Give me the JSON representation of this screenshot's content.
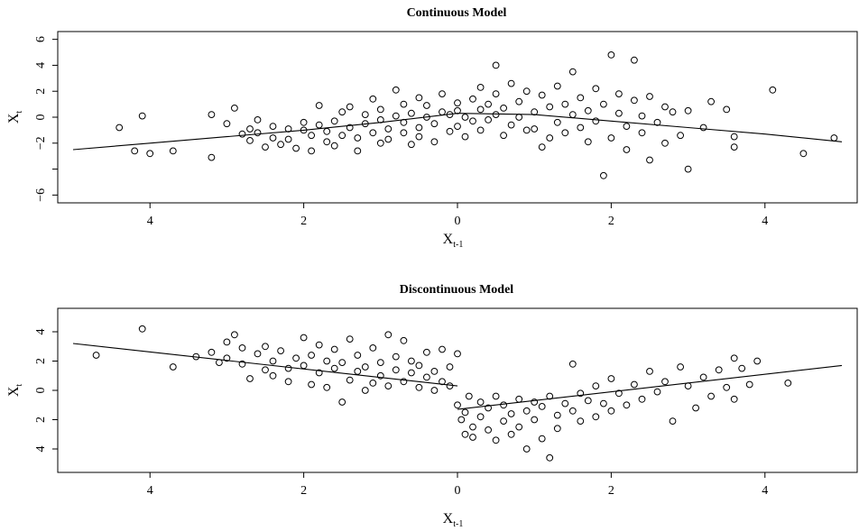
{
  "chart_data": [
    {
      "type": "scatter",
      "title": "Continuous Model",
      "xlabel": "X",
      "xlabel_sub": "t-1",
      "ylabel": "X",
      "ylabel_sub": "t",
      "xlim": [
        -5.2,
        5.2
      ],
      "ylim": [
        -6.6,
        6.6
      ],
      "x_ticks": [
        -4,
        -2,
        0,
        2,
        4
      ],
      "x_tick_labels": [
        "4",
        "2",
        "0",
        "2",
        "4"
      ],
      "y_ticks": [
        -6,
        -4,
        -2,
        0,
        2,
        4,
        6
      ],
      "y_tick_labels": [
        "−6",
        "",
        "−2",
        "0",
        "2",
        "4",
        "6"
      ],
      "grid": false,
      "fit_line": {
        "x": [
          -5,
          -4,
          -3,
          -2,
          -1,
          0,
          1,
          2,
          3,
          4,
          5
        ],
        "y": [
          -2.5,
          -2,
          -1.5,
          -1,
          -0.4,
          0.3,
          0.2,
          -0.3,
          -0.8,
          -1.3,
          -1.9
        ]
      },
      "series": [
        {
          "marker": "open-circle",
          "points": [
            [
              -4.4,
              -0.8
            ],
            [
              -4.1,
              0.1
            ],
            [
              -4.2,
              -2.6
            ],
            [
              -4.0,
              -2.8
            ],
            [
              -3.7,
              -2.6
            ],
            [
              -3.2,
              0.2
            ],
            [
              -3.2,
              -3.1
            ],
            [
              -3.0,
              -0.5
            ],
            [
              -2.9,
              0.7
            ],
            [
              -2.8,
              -1.3
            ],
            [
              -2.7,
              -0.9
            ],
            [
              -2.7,
              -1.8
            ],
            [
              -2.6,
              -0.2
            ],
            [
              -2.6,
              -1.2
            ],
            [
              -2.5,
              -2.3
            ],
            [
              -2.4,
              -1.6
            ],
            [
              -2.4,
              -0.7
            ],
            [
              -2.3,
              -2.1
            ],
            [
              -2.2,
              -0.9
            ],
            [
              -2.2,
              -1.7
            ],
            [
              -2.1,
              -2.4
            ],
            [
              -2.0,
              -1.0
            ],
            [
              -2.0,
              -0.4
            ],
            [
              -1.9,
              -2.6
            ],
            [
              -1.9,
              -1.4
            ],
            [
              -1.8,
              -0.6
            ],
            [
              -1.8,
              0.9
            ],
            [
              -1.7,
              -1.9
            ],
            [
              -1.7,
              -1.1
            ],
            [
              -1.6,
              -0.3
            ],
            [
              -1.6,
              -2.2
            ],
            [
              -1.5,
              0.4
            ],
            [
              -1.5,
              -1.4
            ],
            [
              -1.4,
              -0.8
            ],
            [
              -1.4,
              0.8
            ],
            [
              -1.3,
              -2.6
            ],
            [
              -1.3,
              -1.6
            ],
            [
              -1.2,
              0.2
            ],
            [
              -1.2,
              -0.5
            ],
            [
              -1.1,
              -1.2
            ],
            [
              -1.1,
              1.4
            ],
            [
              -1.0,
              -2.0
            ],
            [
              -1.0,
              -0.2
            ],
            [
              -1.0,
              0.6
            ],
            [
              -0.9,
              -1.7
            ],
            [
              -0.9,
              -0.9
            ],
            [
              -0.8,
              0.1
            ],
            [
              -0.8,
              2.1
            ],
            [
              -0.7,
              -1.2
            ],
            [
              -0.7,
              -0.4
            ],
            [
              -0.7,
              1.0
            ],
            [
              -0.6,
              -2.1
            ],
            [
              -0.6,
              0.3
            ],
            [
              -0.5,
              -0.8
            ],
            [
              -0.5,
              1.5
            ],
            [
              -0.5,
              -1.5
            ],
            [
              -0.4,
              0.0
            ],
            [
              -0.4,
              0.9
            ],
            [
              -0.3,
              -1.9
            ],
            [
              -0.3,
              -0.5
            ],
            [
              -0.2,
              1.8
            ],
            [
              -0.2,
              0.4
            ],
            [
              -0.1,
              -1.1
            ],
            [
              -0.1,
              0.2
            ],
            [
              0.0,
              1.1
            ],
            [
              0.0,
              -0.7
            ],
            [
              0.0,
              0.5
            ],
            [
              0.1,
              -1.5
            ],
            [
              0.1,
              0.0
            ],
            [
              0.2,
              1.4
            ],
            [
              0.2,
              -0.3
            ],
            [
              0.3,
              2.3
            ],
            [
              0.3,
              0.6
            ],
            [
              0.3,
              -1.0
            ],
            [
              0.4,
              1.0
            ],
            [
              0.4,
              -0.2
            ],
            [
              0.5,
              4.0
            ],
            [
              0.5,
              1.8
            ],
            [
              0.5,
              0.2
            ],
            [
              0.6,
              -1.4
            ],
            [
              0.6,
              0.7
            ],
            [
              0.7,
              2.6
            ],
            [
              0.7,
              -0.6
            ],
            [
              0.8,
              1.2
            ],
            [
              0.8,
              0.0
            ],
            [
              0.9,
              -1.0
            ],
            [
              0.9,
              2.0
            ],
            [
              1.0,
              0.4
            ],
            [
              1.0,
              -0.9
            ],
            [
              1.1,
              1.7
            ],
            [
              1.1,
              -2.3
            ],
            [
              1.2,
              0.8
            ],
            [
              1.2,
              -1.6
            ],
            [
              1.3,
              2.4
            ],
            [
              1.3,
              -0.4
            ],
            [
              1.4,
              1.0
            ],
            [
              1.4,
              -1.2
            ],
            [
              1.5,
              0.2
            ],
            [
              1.5,
              3.5
            ],
            [
              1.6,
              -0.8
            ],
            [
              1.6,
              1.5
            ],
            [
              1.7,
              -1.9
            ],
            [
              1.7,
              0.5
            ],
            [
              1.8,
              2.2
            ],
            [
              1.8,
              -0.3
            ],
            [
              1.9,
              -4.5
            ],
            [
              1.9,
              1.0
            ],
            [
              2.0,
              4.8
            ],
            [
              2.0,
              -1.6
            ],
            [
              2.1,
              0.3
            ],
            [
              2.1,
              1.8
            ],
            [
              2.2,
              -2.5
            ],
            [
              2.2,
              -0.7
            ],
            [
              2.3,
              4.4
            ],
            [
              2.3,
              1.3
            ],
            [
              2.4,
              -1.2
            ],
            [
              2.4,
              0.1
            ],
            [
              2.5,
              -3.3
            ],
            [
              2.5,
              1.6
            ],
            [
              2.6,
              -0.4
            ],
            [
              2.7,
              0.8
            ],
            [
              2.7,
              -2.0
            ],
            [
              2.8,
              0.4
            ],
            [
              2.9,
              -1.4
            ],
            [
              3.0,
              -4.0
            ],
            [
              3.0,
              0.5
            ],
            [
              3.2,
              -0.8
            ],
            [
              3.3,
              1.2
            ],
            [
              3.5,
              0.6
            ],
            [
              3.6,
              -1.5
            ],
            [
              3.6,
              -2.3
            ],
            [
              4.1,
              2.1
            ],
            [
              4.5,
              -2.8
            ],
            [
              4.9,
              -1.6
            ]
          ]
        }
      ]
    },
    {
      "type": "scatter",
      "title": "Discontinuous Model",
      "xlabel": "X",
      "xlabel_sub": "t-1",
      "ylabel": "X",
      "ylabel_sub": "t",
      "xlim": [
        -5.2,
        5.2
      ],
      "ylim": [
        -5.6,
        5.6
      ],
      "x_ticks": [
        -4,
        -2,
        0,
        2,
        4
      ],
      "x_tick_labels": [
        "4",
        "2",
        "0",
        "2",
        "4"
      ],
      "y_ticks": [
        -4,
        -2,
        0,
        2,
        4
      ],
      "y_tick_labels": [
        "4",
        "2",
        "0",
        "2",
        "4"
      ],
      "grid": false,
      "fit_segments": [
        {
          "x": [
            -5,
            0
          ],
          "y": [
            3.2,
            0.3
          ]
        },
        {
          "x": [
            0,
            5
          ],
          "y": [
            -1.3,
            1.7
          ]
        }
      ],
      "series": [
        {
          "marker": "open-circle",
          "points": [
            [
              -4.7,
              2.4
            ],
            [
              -4.1,
              4.2
            ],
            [
              -3.7,
              1.6
            ],
            [
              -3.4,
              2.3
            ],
            [
              -3.2,
              2.6
            ],
            [
              -3.1,
              1.9
            ],
            [
              -3.0,
              3.3
            ],
            [
              -3.0,
              2.2
            ],
            [
              -2.9,
              3.8
            ],
            [
              -2.8,
              1.8
            ],
            [
              -2.8,
              2.9
            ],
            [
              -2.7,
              0.8
            ],
            [
              -2.6,
              2.5
            ],
            [
              -2.5,
              1.4
            ],
            [
              -2.5,
              3.0
            ],
            [
              -2.4,
              2.0
            ],
            [
              -2.4,
              1.0
            ],
            [
              -2.3,
              2.7
            ],
            [
              -2.2,
              1.5
            ],
            [
              -2.2,
              0.6
            ],
            [
              -2.1,
              2.2
            ],
            [
              -2.0,
              3.6
            ],
            [
              -2.0,
              1.7
            ],
            [
              -1.9,
              0.4
            ],
            [
              -1.9,
              2.4
            ],
            [
              -1.8,
              1.2
            ],
            [
              -1.8,
              3.1
            ],
            [
              -1.7,
              2.0
            ],
            [
              -1.7,
              0.2
            ],
            [
              -1.6,
              1.5
            ],
            [
              -1.6,
              2.8
            ],
            [
              -1.5,
              -0.8
            ],
            [
              -1.5,
              1.9
            ],
            [
              -1.4,
              0.7
            ],
            [
              -1.4,
              3.5
            ],
            [
              -1.3,
              1.3
            ],
            [
              -1.3,
              2.4
            ],
            [
              -1.2,
              0.0
            ],
            [
              -1.2,
              1.6
            ],
            [
              -1.1,
              2.9
            ],
            [
              -1.1,
              0.5
            ],
            [
              -1.0,
              1.9
            ],
            [
              -1.0,
              1.0
            ],
            [
              -0.9,
              3.8
            ],
            [
              -0.9,
              0.3
            ],
            [
              -0.8,
              2.3
            ],
            [
              -0.8,
              1.4
            ],
            [
              -0.7,
              0.6
            ],
            [
              -0.7,
              3.4
            ],
            [
              -0.6,
              1.2
            ],
            [
              -0.6,
              2.0
            ],
            [
              -0.5,
              0.2
            ],
            [
              -0.5,
              1.7
            ],
            [
              -0.4,
              0.9
            ],
            [
              -0.4,
              2.6
            ],
            [
              -0.3,
              0.0
            ],
            [
              -0.3,
              1.3
            ],
            [
              -0.2,
              2.8
            ],
            [
              -0.2,
              0.6
            ],
            [
              -0.1,
              1.6
            ],
            [
              -0.1,
              0.3
            ],
            [
              0.0,
              2.5
            ],
            [
              0.0,
              -1.0
            ],
            [
              0.05,
              -2.0
            ],
            [
              0.1,
              -3.0
            ],
            [
              0.1,
              -1.5
            ],
            [
              0.15,
              -0.4
            ],
            [
              0.2,
              -2.5
            ],
            [
              0.2,
              -3.2
            ],
            [
              0.3,
              -1.8
            ],
            [
              0.3,
              -0.8
            ],
            [
              0.4,
              -2.7
            ],
            [
              0.4,
              -1.2
            ],
            [
              0.5,
              -3.4
            ],
            [
              0.5,
              -0.4
            ],
            [
              0.6,
              -2.1
            ],
            [
              0.6,
              -1.0
            ],
            [
              0.7,
              -3.0
            ],
            [
              0.7,
              -1.6
            ],
            [
              0.8,
              -0.6
            ],
            [
              0.8,
              -2.5
            ],
            [
              0.9,
              -1.4
            ],
            [
              0.9,
              -4.0
            ],
            [
              1.0,
              -0.8
            ],
            [
              1.0,
              -2.0
            ],
            [
              1.1,
              -3.3
            ],
            [
              1.1,
              -1.1
            ],
            [
              1.2,
              -4.6
            ],
            [
              1.2,
              -0.4
            ],
            [
              1.3,
              -1.7
            ],
            [
              1.3,
              -2.6
            ],
            [
              1.4,
              -0.9
            ],
            [
              1.5,
              1.8
            ],
            [
              1.5,
              -1.4
            ],
            [
              1.6,
              -0.2
            ],
            [
              1.6,
              -2.1
            ],
            [
              1.7,
              -0.7
            ],
            [
              1.8,
              0.3
            ],
            [
              1.8,
              -1.8
            ],
            [
              1.9,
              -0.9
            ],
            [
              2.0,
              0.8
            ],
            [
              2.0,
              -1.4
            ],
            [
              2.1,
              -0.2
            ],
            [
              2.2,
              -1.0
            ],
            [
              2.3,
              0.4
            ],
            [
              2.4,
              -0.6
            ],
            [
              2.5,
              1.3
            ],
            [
              2.6,
              -0.1
            ],
            [
              2.7,
              0.6
            ],
            [
              2.8,
              -2.1
            ],
            [
              2.9,
              1.6
            ],
            [
              3.0,
              0.3
            ],
            [
              3.1,
              -1.2
            ],
            [
              3.2,
              0.9
            ],
            [
              3.3,
              -0.4
            ],
            [
              3.4,
              1.4
            ],
            [
              3.5,
              0.2
            ],
            [
              3.6,
              -0.6
            ],
            [
              3.6,
              2.2
            ],
            [
              3.7,
              1.5
            ],
            [
              3.8,
              0.4
            ],
            [
              3.9,
              2.0
            ],
            [
              4.3,
              0.5
            ]
          ]
        }
      ]
    }
  ]
}
